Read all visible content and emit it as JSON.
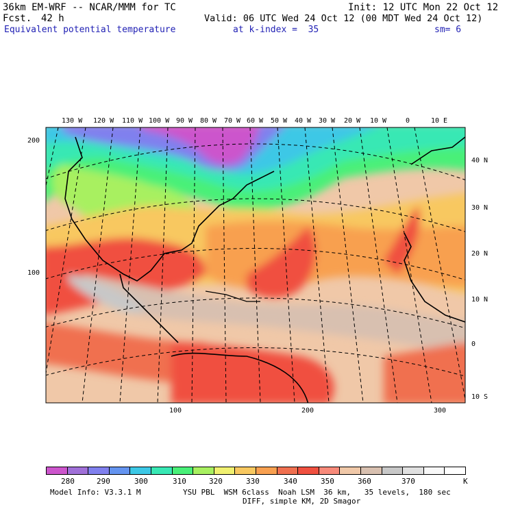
{
  "header": {
    "model": "36km EM-WRF -- NCAR/MMM for TC",
    "fcst_label": "Fcst.",
    "fcst_value": "42 h",
    "init": "Init: 12 UTC Mon 22 Oct 12",
    "valid": "Valid: 06 UTC Wed 24 Oct 12 (00 MDT Wed 24 Oct 12)",
    "field": "Equivalent potential temperature",
    "level": "at k-index =  35",
    "smooth": "sm= 6"
  },
  "map": {
    "lon_labels": [
      "130 W",
      "120 W",
      "110 W",
      "100 W",
      "90 W",
      "80 W",
      "70 W",
      "60 W",
      "50 W",
      "40 W",
      "30 W",
      "20 W",
      "10 W",
      "0",
      "10 E"
    ],
    "lat_labels": [
      "40 N",
      "30 N",
      "20 N",
      "10 N",
      "0",
      "10 S"
    ],
    "grid_left_labels": [
      "200",
      "100"
    ],
    "grid_bottom_labels": [
      "100",
      "200",
      "300"
    ]
  },
  "colorbar": {
    "colors": [
      "#cc55cc",
      "#a070d8",
      "#8080ee",
      "#6494f0",
      "#3cc8e6",
      "#38e8b4",
      "#48f078",
      "#a8f060",
      "#f0f070",
      "#f8c860",
      "#f8a050",
      "#f07050",
      "#f05040",
      "#f88a7a",
      "#f0c8a8",
      "#d8c0b0",
      "#c8c8c8",
      "#e0e0e0",
      "#f8f8f8",
      "#ffffff"
    ],
    "labels": [
      "280",
      "290",
      "300",
      "310",
      "320",
      "330",
      "340",
      "350",
      "360",
      "370",
      "K"
    ]
  },
  "footer": {
    "model_info": "Model Info: V3.3.1 M",
    "physics": "YSU PBL  WSM 6class  Noah LSM  36 km,   35 levels,  180 sec",
    "diff": "DIFF, simple KM, 2D Smagor"
  }
}
